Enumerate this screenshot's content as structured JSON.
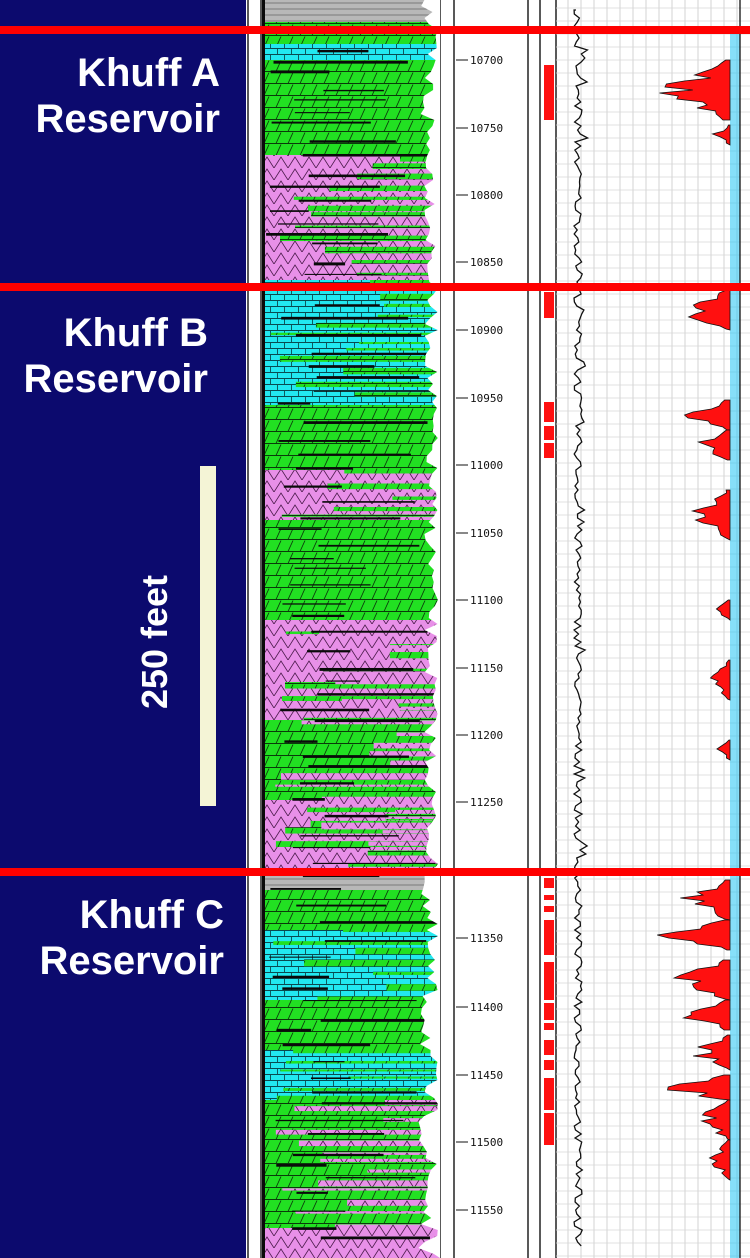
{
  "reservoirs": [
    {
      "name": "Khuff A",
      "label": "Reservoir"
    },
    {
      "name": "Khuff B",
      "label": "Reservoir"
    },
    {
      "name": "Khuff C",
      "label": "Reservoir"
    }
  ],
  "scale": {
    "label": "250 feet"
  },
  "depth_labels": [
    "10700",
    "10750",
    "10800",
    "10850",
    "10900",
    "10950",
    "11000",
    "11050",
    "11100",
    "11150",
    "11200",
    "11250",
    "11350",
    "11400",
    "11450",
    "11500",
    "11550"
  ],
  "colors": {
    "panel_bg": "#0c0a6e",
    "reservoir_boundary": "#ff0000",
    "dolomite": "#22e022",
    "limestone": "#22e8f0",
    "anhydrite": "#e890e8",
    "shale": "#b8b8b8",
    "porosity_fill": "#ff1010",
    "water_fill": "#22c4f4",
    "scale_bar": "#f4f4d6"
  }
}
